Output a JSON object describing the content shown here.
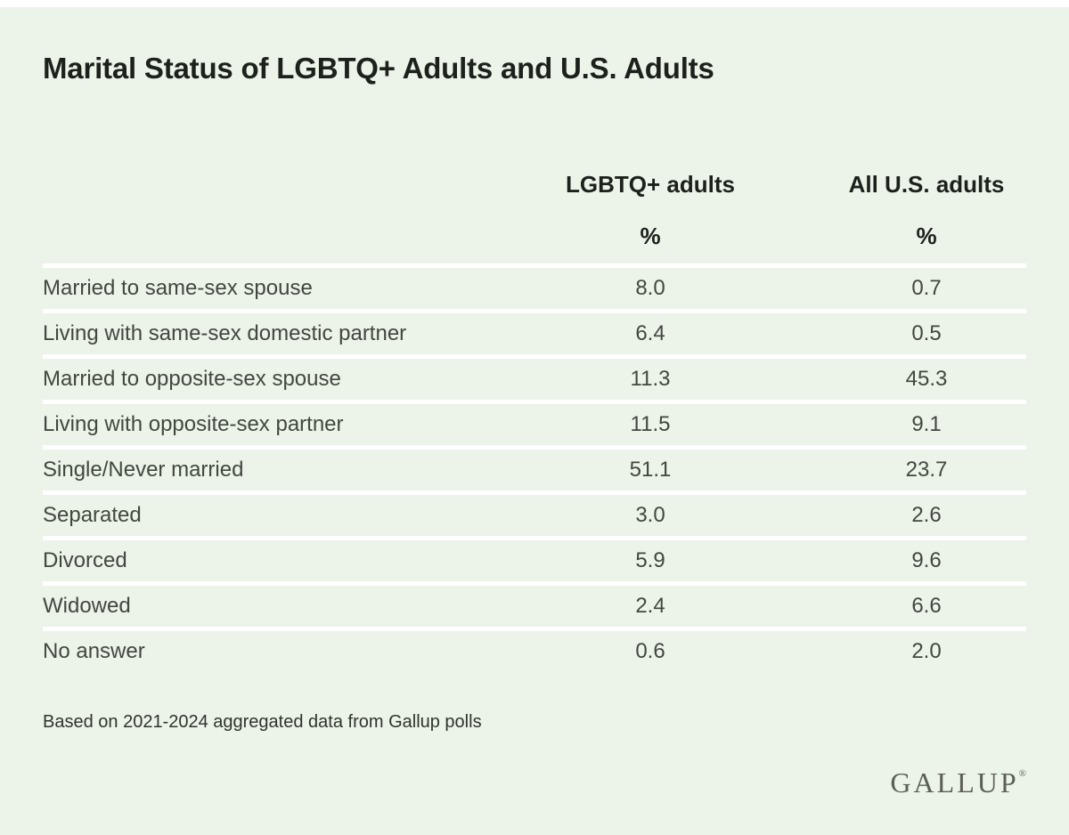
{
  "page": {
    "title": "Marital Status of LGBTQ+ Adults and U.S. Adults",
    "note": "Based on 2021-2024 aggregated data from Gallup polls",
    "brand": "GALLUP",
    "brand_registered": "®"
  },
  "colors": {
    "background": "#ecf3e9",
    "separator": "#ffffff",
    "text_primary": "#1c211b",
    "text_secondary": "#42473f",
    "brand": "#5b6054"
  },
  "chart_data": {
    "type": "table",
    "title": "Marital Status of LGBTQ+ Adults and U.S. Adults",
    "columns": [
      "LGBTQ+ adults",
      "All U.S. adults"
    ],
    "unit": "%",
    "rows": [
      {
        "label": "Married to same-sex spouse",
        "lgbtq": "8.0",
        "all_us": "0.7"
      },
      {
        "label": "Living with same-sex domestic partner",
        "lgbtq": "6.4",
        "all_us": "0.5"
      },
      {
        "label": "Married to opposite-sex spouse",
        "lgbtq": "11.3",
        "all_us": "45.3"
      },
      {
        "label": "Living with opposite-sex partner",
        "lgbtq": "11.5",
        "all_us": "9.1"
      },
      {
        "label": "Single/Never married",
        "lgbtq": "51.1",
        "all_us": "23.7"
      },
      {
        "label": "Separated",
        "lgbtq": "3.0",
        "all_us": "2.6"
      },
      {
        "label": "Divorced",
        "lgbtq": "5.9",
        "all_us": "9.6"
      },
      {
        "label": "Widowed",
        "lgbtq": "2.4",
        "all_us": "6.6"
      },
      {
        "label": "No answer",
        "lgbtq": "0.6",
        "all_us": "2.0"
      }
    ],
    "note": "Based on 2021-2024 aggregated data from Gallup polls",
    "layout": {
      "grid": "off",
      "legend": "none"
    }
  }
}
